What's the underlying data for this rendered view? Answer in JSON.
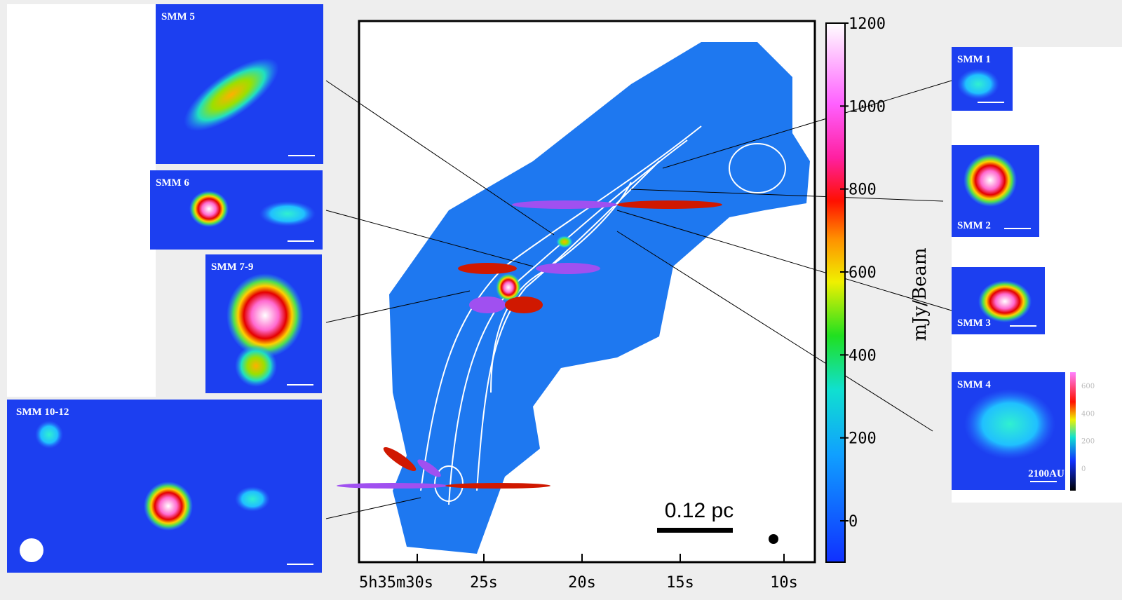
{
  "main_map": {
    "x_tick_labels": [
      "5h35m30s",
      "25s",
      "20s",
      "15s",
      "10s"
    ],
    "colorbar": {
      "label": "mJy/Beam",
      "ticks": [
        0,
        200,
        400,
        600,
        800,
        1000,
        1200
      ]
    },
    "scale_bar": "0.12 pc"
  },
  "insets": [
    {
      "label": "SMM 5"
    },
    {
      "label": "SMM 6"
    },
    {
      "label": "SMM 7-9"
    },
    {
      "label": "SMM 10-12"
    },
    {
      "label": "SMM 1"
    },
    {
      "label": "SMM 2"
    },
    {
      "label": "SMM 3"
    },
    {
      "label": "SMM 4"
    }
  ],
  "inset_colorbar": {
    "ticks": [
      0,
      200,
      400,
      600
    ],
    "scale": "2100AU"
  }
}
